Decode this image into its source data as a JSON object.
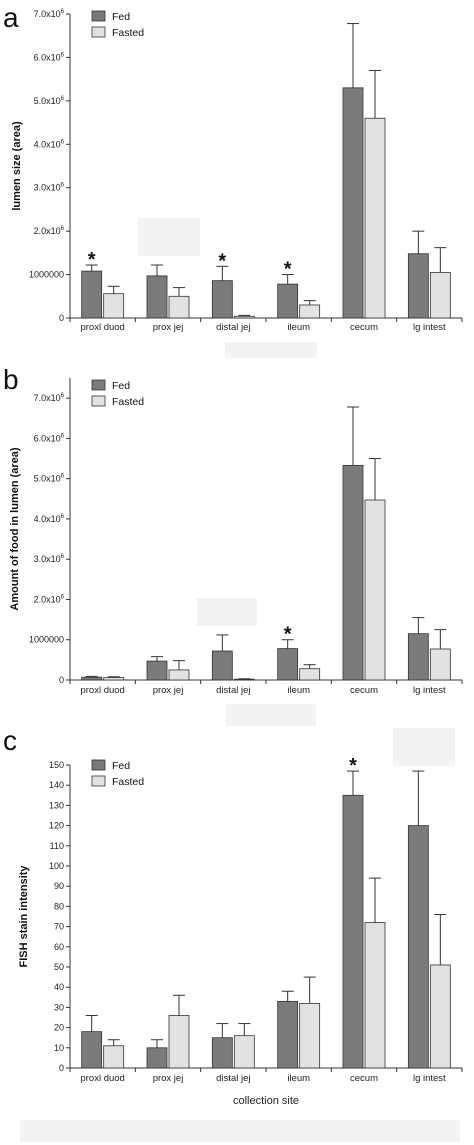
{
  "colors": {
    "fed": "#7b7b7b",
    "fasted": "#e2e2e2",
    "axis": "#333333"
  },
  "legend": {
    "fed": "Fed",
    "fasted": "Fasted"
  },
  "chart_data": [
    {
      "type": "bar",
      "panel": "a",
      "ylabel": "lumen size (area)",
      "xlabel": "",
      "categories": [
        "proxl duod",
        "prox jej",
        "distal jej",
        "ileum",
        "cecum",
        "lg intest"
      ],
      "ylim": [
        0,
        7000000
      ],
      "yticks": [
        {
          "value": 0,
          "label": "0"
        },
        {
          "value": 1000000,
          "label": "1000000"
        },
        {
          "value": 2000000,
          "label": "2.0x10^6"
        },
        {
          "value": 3000000,
          "label": "3.0x10^6"
        },
        {
          "value": 4000000,
          "label": "4.0x10^6"
        },
        {
          "value": 5000000,
          "label": "5.0x10^6"
        },
        {
          "value": 6000000,
          "label": "6.0x10^6"
        },
        {
          "value": 7000000,
          "label": "7.0x10^6"
        }
      ],
      "series": [
        {
          "name": "Fed",
          "values": [
            1080000,
            970000,
            860000,
            780000,
            5300000,
            1480000
          ],
          "errors": [
            140000,
            250000,
            330000,
            220000,
            1480000,
            520000
          ]
        },
        {
          "name": "Fasted",
          "values": [
            560000,
            500000,
            40000,
            300000,
            4600000,
            1050000
          ],
          "errors": [
            170000,
            200000,
            20000,
            100000,
            1100000,
            570000
          ]
        }
      ],
      "significant": [
        true,
        false,
        true,
        true,
        false,
        false
      ],
      "significance_marker": "*",
      "grid": false,
      "legend_position": "top-left"
    },
    {
      "type": "bar",
      "panel": "b",
      "ylabel": "Amount of food in lumen (area)",
      "xlabel": "",
      "categories": [
        "proxl duod",
        "prox jej",
        "distal jej",
        "ileum",
        "cecum",
        "lg intest"
      ],
      "ylim": [
        0,
        7500000
      ],
      "yticks": [
        {
          "value": 0,
          "label": "0"
        },
        {
          "value": 1000000,
          "label": "1000000"
        },
        {
          "value": 2000000,
          "label": "2.0x10^6"
        },
        {
          "value": 3000000,
          "label": "3.0x10^6"
        },
        {
          "value": 4000000,
          "label": "4.0x10^6"
        },
        {
          "value": 5000000,
          "label": "5.0x10^6"
        },
        {
          "value": 6000000,
          "label": "6.0x10^6"
        },
        {
          "value": 7000000,
          "label": "7.0x10^6"
        }
      ],
      "series": [
        {
          "name": "Fed",
          "values": [
            70000,
            470000,
            720000,
            780000,
            5330000,
            1150000
          ],
          "errors": [
            20000,
            110000,
            400000,
            220000,
            1450000,
            400000
          ]
        },
        {
          "name": "Fasted",
          "values": [
            60000,
            250000,
            20000,
            280000,
            4470000,
            770000
          ],
          "errors": [
            20000,
            230000,
            10000,
            100000,
            1030000,
            480000
          ]
        }
      ],
      "significant": [
        false,
        false,
        false,
        true,
        false,
        false
      ],
      "significance_marker": "*",
      "grid": false,
      "legend_position": "top-left"
    },
    {
      "type": "bar",
      "panel": "c",
      "ylabel": "FISH stain intensity",
      "xlabel": "collection site",
      "categories": [
        "proxl duod",
        "prox jej",
        "distal jej",
        "ileum",
        "cecum",
        "lg intest"
      ],
      "ylim": [
        0,
        150
      ],
      "yticks": [
        {
          "value": 0,
          "label": "0"
        },
        {
          "value": 10,
          "label": "10"
        },
        {
          "value": 20,
          "label": "20"
        },
        {
          "value": 30,
          "label": "30"
        },
        {
          "value": 40,
          "label": "40"
        },
        {
          "value": 50,
          "label": "50"
        },
        {
          "value": 60,
          "label": "60"
        },
        {
          "value": 70,
          "label": "70"
        },
        {
          "value": 80,
          "label": "80"
        },
        {
          "value": 90,
          "label": "90"
        },
        {
          "value": 100,
          "label": "100"
        },
        {
          "value": 110,
          "label": "110"
        },
        {
          "value": 120,
          "label": "120"
        },
        {
          "value": 130,
          "label": "130"
        },
        {
          "value": 140,
          "label": "140"
        },
        {
          "value": 150,
          "label": "150"
        }
      ],
      "series": [
        {
          "name": "Fed",
          "values": [
            18,
            10,
            15,
            33,
            135,
            120
          ],
          "errors": [
            8,
            4,
            7,
            5,
            12,
            27
          ]
        },
        {
          "name": "Fasted",
          "values": [
            11,
            26,
            16,
            32,
            72,
            51
          ],
          "errors": [
            3,
            10,
            6,
            13,
            22,
            25
          ]
        }
      ],
      "significant": [
        false,
        false,
        false,
        false,
        true,
        false
      ],
      "significance_marker": "*",
      "grid": false,
      "legend_position": "top-left"
    }
  ]
}
